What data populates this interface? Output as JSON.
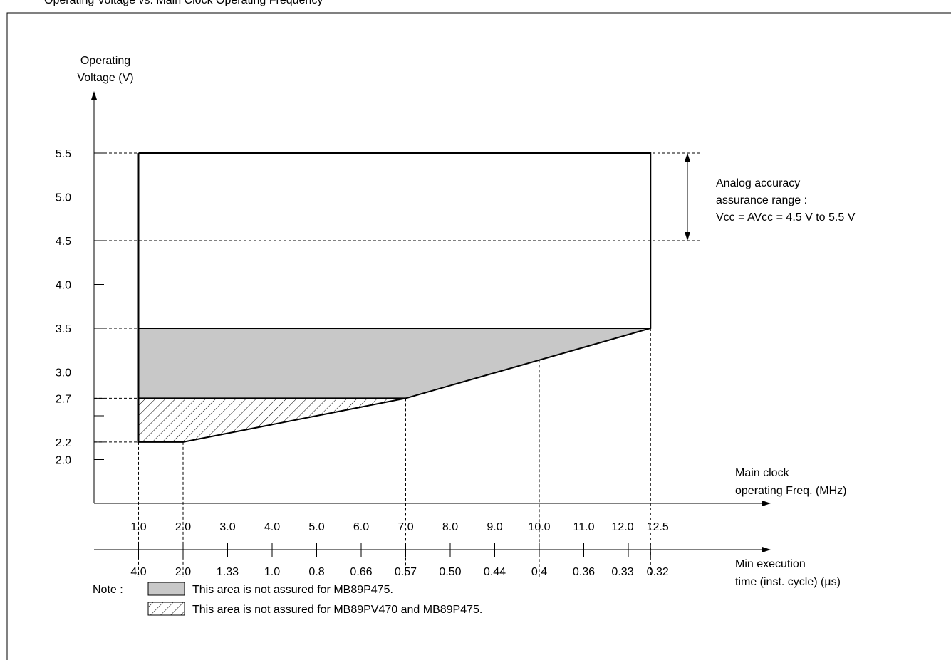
{
  "header_text": "Operating Voltage vs. Main Clock Operating Frequency",
  "chart_data": {
    "type": "area",
    "ylabel": [
      "Operating",
      "Voltage (V)"
    ],
    "xlabel": [
      "Main clock",
      "operating Freq. (MHz)"
    ],
    "x2label": [
      "Min execution",
      "time (inst. cycle) (µs)"
    ],
    "x_ticks": [
      1.0,
      2.0,
      3.0,
      4.0,
      5.0,
      6.0,
      7.0,
      8.0,
      9.0,
      10.0,
      11.0,
      12.0,
      12.5
    ],
    "x_tick_labels": [
      "1.0",
      "2.0",
      "3.0",
      "4.0",
      "5.0",
      "6.0",
      "7.0",
      "8.0",
      "9.0",
      "10.0",
      "11.0",
      "12.0",
      "12.5"
    ],
    "x2_tick_labels": [
      "4.0",
      "2.0",
      "1.33",
      "1.0",
      "0.8",
      "0.66",
      "0.57",
      "0.50",
      "0.44",
      "0.4",
      "0.36",
      "0.33",
      "0.32"
    ],
    "y_ticks": [
      2.0,
      2.2,
      2.5,
      2.7,
      3.0,
      3.5,
      4.0,
      4.5,
      5.0,
      5.5
    ],
    "y_tick_labels": [
      "2.0",
      "2.2",
      "",
      "2.7",
      "3.0",
      "3.5",
      "4.0",
      "4.5",
      "5.0",
      "5.5"
    ],
    "xlim": [
      0,
      14.5
    ],
    "ylim": [
      1.05,
      6.5
    ],
    "operating_region": [
      [
        1.0,
        5.5
      ],
      [
        12.5,
        5.5
      ],
      [
        12.5,
        3.5
      ],
      [
        1.0,
        3.5
      ]
    ],
    "not_assured_mb89p475": [
      [
        1.0,
        3.5
      ],
      [
        12.5,
        3.5
      ],
      [
        7.0,
        2.7
      ],
      [
        1.0,
        2.7
      ]
    ],
    "not_assured_mb89pv470_mb89p475": [
      [
        1.0,
        2.7
      ],
      [
        7.0,
        2.7
      ],
      [
        2.0,
        2.2
      ],
      [
        1.0,
        2.2
      ]
    ],
    "boundary_line": [
      [
        1.0,
        5.5
      ],
      [
        12.5,
        5.5
      ],
      [
        12.5,
        3.5
      ],
      [
        7.0,
        2.7
      ],
      [
        2.0,
        2.2
      ],
      [
        1.0,
        2.2
      ],
      [
        1.0,
        5.5
      ]
    ],
    "guide_lines_y": [
      5.5,
      4.5,
      3.5,
      3.0,
      2.7,
      2.2
    ],
    "guide_lines_x": [
      {
        "x": 1.0,
        "y": 2.2
      },
      {
        "x": 2.0,
        "y": 2.2
      },
      {
        "x": 7.0,
        "y": 2.7
      },
      {
        "x": 10.0,
        "y": 3.14
      },
      {
        "x": 12.5,
        "y": 3.5
      }
    ],
    "analog_range": {
      "ymin": 4.5,
      "ymax": 5.5,
      "text": [
        "Analog accuracy",
        "assurance range :",
        "Vcc = AVcc = 4.5 V to 5.5 V"
      ]
    },
    "note_label": "Note :",
    "legend": [
      {
        "style": "gray",
        "color": "#c8c8c8",
        "text": "This area is not assured for MB89P475."
      },
      {
        "style": "hatch",
        "text": "This area is not assured for MB89PV470 and MB89P475."
      }
    ]
  }
}
